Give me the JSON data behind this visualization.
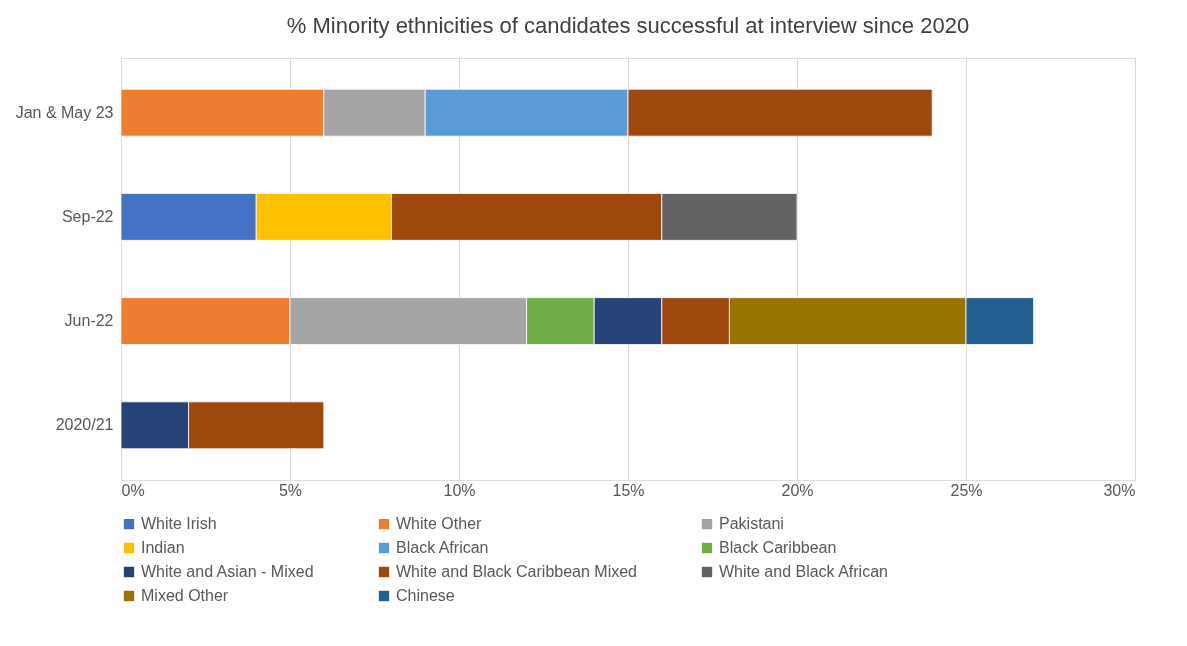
{
  "chart_data": {
    "type": "bar",
    "title": "% Minority ethnicities of candidates successful at interview since 2020",
    "orientation": "horizontal",
    "stacked": true,
    "categories": [
      "Jan & May 23",
      "Sep-22",
      "Jun-22",
      "2020/21"
    ],
    "series": [
      {
        "name": "White Irish",
        "color": "#4472c4",
        "values": [
          null,
          4,
          null,
          null
        ]
      },
      {
        "name": "White Other",
        "color": "#ed7d31",
        "values": [
          6,
          null,
          5,
          null
        ]
      },
      {
        "name": "Pakistani",
        "color": "#a5a5a5",
        "values": [
          3,
          null,
          7,
          null
        ]
      },
      {
        "name": "Indian",
        "color": "#ffc000",
        "values": [
          null,
          4,
          null,
          null
        ]
      },
      {
        "name": "Black African",
        "color": "#5b9bd5",
        "values": [
          6,
          null,
          null,
          null
        ]
      },
      {
        "name": "Black Caribbean",
        "color": "#70ad47",
        "values": [
          null,
          null,
          2,
          null
        ]
      },
      {
        "name": "White and Asian - Mixed",
        "color": "#264478",
        "values": [
          null,
          null,
          2,
          2
        ]
      },
      {
        "name": "White and Black Caribbean Mixed",
        "color": "#9e480e",
        "values": [
          9,
          8,
          2,
          4
        ]
      },
      {
        "name": "White and Black African",
        "color": "#636363",
        "values": [
          null,
          4,
          null,
          null
        ]
      },
      {
        "name": "Mixed Other",
        "color": "#997300",
        "values": [
          null,
          null,
          7,
          null
        ]
      },
      {
        "name": "Chinese",
        "color": "#255e91",
        "values": [
          null,
          null,
          2,
          null
        ]
      }
    ],
    "xlim": [
      0,
      30
    ],
    "xticks": [
      {
        "value": 0,
        "label": "0%"
      },
      {
        "value": 5,
        "label": "5%"
      },
      {
        "value": 10,
        "label": "10%"
      },
      {
        "value": 15,
        "label": "15%"
      },
      {
        "value": 20,
        "label": "20%"
      },
      {
        "value": 25,
        "label": "25%"
      },
      {
        "value": 30,
        "label": "30%"
      }
    ],
    "grid": "x",
    "legend": "bottom"
  }
}
